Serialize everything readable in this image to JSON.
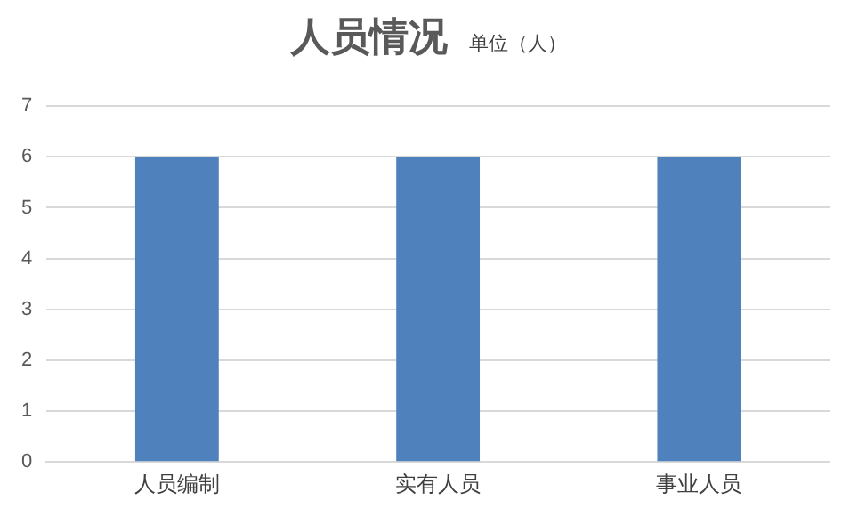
{
  "chart_data": {
    "type": "bar",
    "title": "人员情况",
    "subtitle": "单位（人）",
    "categories": [
      "人员编制",
      "实有人员",
      "事业人员"
    ],
    "values": [
      6,
      6,
      6
    ],
    "color": "#4f81bd",
    "ylim": [
      0,
      7
    ],
    "yticks": [
      0,
      1,
      2,
      3,
      4,
      5,
      6,
      7
    ],
    "grid": "y"
  }
}
